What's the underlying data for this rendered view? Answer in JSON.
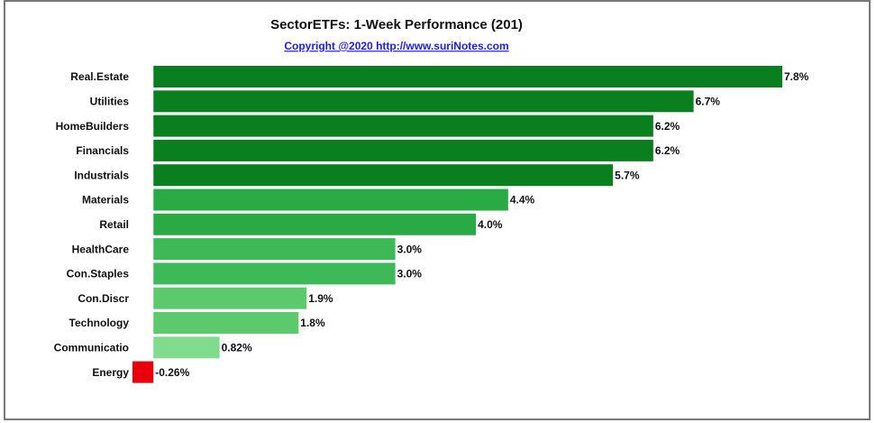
{
  "chart_data": {
    "type": "hbar",
    "title": "SectorETFs: 1-Week Performance (201)",
    "subtitle": "Copyright @2020   http://www.suriNotes.com",
    "categories": [
      "Real.Estate",
      "Utilities",
      "HomeBuilders",
      "Financials",
      "Industrials",
      "Materials",
      "Retail",
      "HealthCare",
      "Con.Staples",
      "Con.Discr",
      "Technology",
      "Communicatio",
      "Energy"
    ],
    "values": [
      7.8,
      6.7,
      6.2,
      6.2,
      5.7,
      4.4,
      4.0,
      3.0,
      3.0,
      1.9,
      1.8,
      0.82,
      -0.26
    ],
    "value_labels": [
      "7.8%",
      "6.7%",
      "6.2%",
      "6.2%",
      "5.7%",
      "4.4%",
      "4.0%",
      "3.0%",
      "3.0%",
      "1.9%",
      "1.8%",
      "0.82%",
      "-0.26%"
    ],
    "colors": [
      "#0a7f1f",
      "#0a7f1f",
      "#0a7f1f",
      "#0a7f1f",
      "#0a7f1f",
      "#2aaa45",
      "#2aaa45",
      "#3dba57",
      "#3dba57",
      "#5cc96c",
      "#5cc96c",
      "#7fdc8d",
      "#e8000b"
    ]
  }
}
